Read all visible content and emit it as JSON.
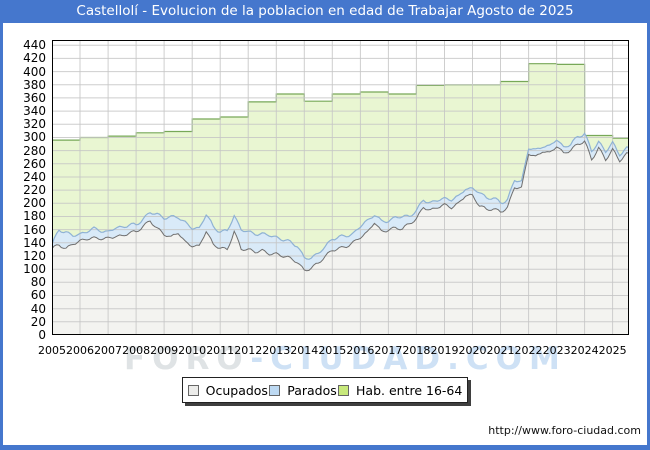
{
  "title_bar": {
    "title": "Castellolí - Evolucion de la poblacion en edad de Trabajar Agosto de 2025"
  },
  "watermark": {
    "part1": "FORO",
    "part2": "-CIUDAD.COM"
  },
  "footer": {
    "url": "http://www.foro-ciudad.com"
  },
  "legend": {
    "items": [
      {
        "label": "Ocupados",
        "color": "#ececea",
        "border": "#666666"
      },
      {
        "label": "Parados",
        "color": "#bdd9f2",
        "border": "#666666"
      },
      {
        "label": "Hab. entre 16-64",
        "color": "#c8e97c",
        "border": "#666666"
      }
    ]
  },
  "colors": {
    "frame_blue": "#4577cd",
    "grid": "#c6c6c6",
    "plot_border": "#000000",
    "hab_fill": "#e9f6d2",
    "hab_stroke": "#77a858",
    "parados_fill": "#d9eaf8",
    "parados_stroke": "#8fb2d4",
    "ocupados_fill": "#f3f3f0",
    "ocupados_stroke": "#6f6f6f"
  },
  "chart_data": {
    "type": "area",
    "title": "Castellolí - Evolucion de la poblacion en edad de Trabajar Agosto de 2025",
    "xlabel": "",
    "ylabel": "",
    "ylim": [
      0,
      448
    ],
    "y_ticks": [
      0,
      20,
      40,
      60,
      80,
      100,
      120,
      140,
      160,
      180,
      200,
      220,
      240,
      260,
      280,
      300,
      320,
      340,
      360,
      380,
      400,
      420,
      440
    ],
    "x_tick_labels": [
      "2005",
      "2006",
      "2007",
      "2008",
      "2009",
      "2010",
      "2011",
      "2012",
      "2013",
      "2014",
      "2015",
      "2016",
      "2017",
      "2018",
      "2019",
      "2020",
      "2021",
      "2022",
      "2023",
      "2024",
      "2025"
    ],
    "x_start": 2005,
    "x_step": 0.25,
    "x_end_month": "2025-08",
    "grid": true,
    "legend_position": "bottom",
    "series": [
      {
        "name": "Hab. entre 16-64",
        "style": "annual-step",
        "years": [
          2005,
          2006,
          2007,
          2008,
          2009,
          2010,
          2011,
          2012,
          2013,
          2014,
          2015,
          2016,
          2017,
          2018,
          2019,
          2020,
          2021,
          2022,
          2023,
          2024,
          2025
        ],
        "values": [
          296,
          300,
          302,
          307,
          309,
          328,
          331,
          354,
          366,
          355,
          366,
          369,
          366,
          379,
          380,
          380,
          385,
          412,
          411,
          303,
          299
        ]
      },
      {
        "name": "Parados",
        "style": "band-stacked-on-ocupados",
        "values": [
          6,
          22,
          26,
          12,
          10,
          12,
          14,
          12,
          10,
          12,
          14,
          12,
          10,
          12,
          12,
          22,
          25,
          30,
          24,
          30,
          26,
          28,
          25,
          27,
          25,
          28,
          24,
          30,
          26,
          28,
          25,
          28,
          26,
          24,
          25,
          25,
          18,
          16,
          15,
          14,
          18,
          17,
          16,
          14,
          16,
          18,
          12,
          15,
          14,
          16,
          18,
          12,
          12,
          11,
          12,
          10,
          10,
          12,
          10,
          11,
          10,
          20,
          18,
          16,
          14,
          12,
          10,
          10,
          8,
          10,
          8,
          10,
          10,
          10,
          8,
          12,
          12,
          12,
          10,
          12,
          10,
          10,
          8
        ]
      },
      {
        "name": "Ocupados",
        "style": "area",
        "values": [
          130,
          137,
          132,
          140,
          142,
          145,
          146,
          147,
          148,
          151,
          149,
          154,
          156,
          166,
          175,
          162,
          152,
          147,
          156,
          142,
          137,
          134,
          157,
          136,
          133,
          131,
          158,
          130,
          128,
          126,
          129,
          125,
          123,
          119,
          115,
          111,
          99,
          103,
          109,
          118,
          128,
          132,
          136,
          141,
          148,
          154,
          171,
          158,
          161,
          163,
          160,
          168,
          176,
          196,
          190,
          194,
          196,
          193,
          200,
          214,
          212,
          196,
          189,
          191,
          188,
          195,
          225,
          222,
          275,
          270,
          281,
          277,
          287,
          274,
          280,
          290,
          296,
          267,
          283,
          265,
          281,
          266,
          276
        ]
      }
    ]
  }
}
